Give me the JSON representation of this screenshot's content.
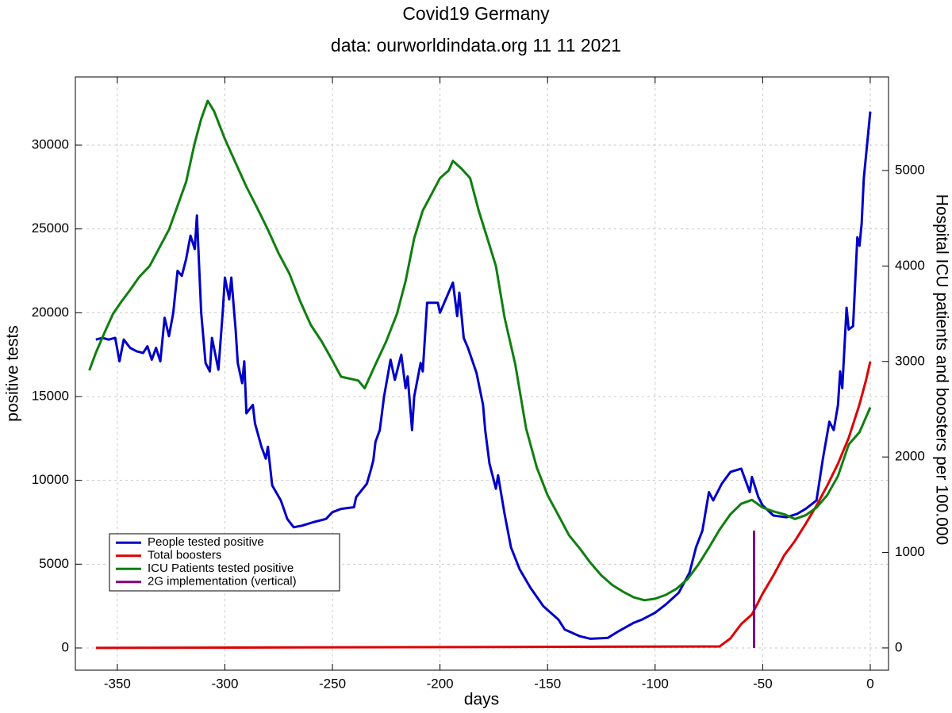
{
  "chart_data": {
    "type": "line",
    "title": "Covid19 Germany",
    "subtitle": "data: ourworldindata.org 11 11 2021",
    "xlabel": "days",
    "ylabel": "positive tests",
    "y2label": "Hospital ICU patients and boosters per 100.000",
    "xlim": [
      -369.5,
      8.5
    ],
    "xticks": [
      -350,
      -300,
      -250,
      -200,
      -150,
      -100,
      -50,
      0
    ],
    "ylim": [
      -1325,
      34070
    ],
    "yticks": [
      0,
      5000,
      10000,
      15000,
      20000,
      25000,
      30000
    ],
    "y2lim": [
      -233,
      5980
    ],
    "y2ticks": [
      0,
      1000,
      2000,
      3000,
      4000,
      5000
    ],
    "grid": true,
    "legend": "lower left",
    "series": [
      {
        "name": "People tested positive",
        "color": "#0000c8",
        "axis": "y",
        "x": [
          -360,
          -357,
          -354,
          -351,
          -349,
          -347,
          -344,
          -341,
          -338,
          -336,
          -334,
          -332,
          -330,
          -328,
          -326,
          -324,
          -322,
          -320,
          -318,
          -316,
          -314,
          -313,
          -311,
          -309,
          -307,
          -306,
          -303,
          -301,
          -300,
          -298,
          -297,
          -295,
          -294,
          -292,
          -291,
          -290,
          -287,
          -286,
          -283,
          -281,
          -280,
          -278,
          -274,
          -271,
          -268,
          -264,
          -259,
          -253,
          -250,
          -246,
          -240,
          -239,
          -234,
          -232,
          -231,
          -230,
          -228,
          -226,
          -223,
          -221,
          -219,
          -218,
          -216,
          -215,
          -213,
          -212,
          -209,
          -208,
          -206,
          -201,
          -200,
          -194,
          -192,
          -191,
          -189,
          -187,
          -183,
          -180,
          -179,
          -177,
          -174,
          -173,
          -170,
          -167,
          -163,
          -158,
          -152,
          -145,
          -142,
          -135,
          -130,
          -122,
          -117,
          -110,
          -106,
          -100,
          -95,
          -89,
          -84,
          -81,
          -78,
          -75,
          -73,
          -69,
          -65,
          -60,
          -56,
          -55,
          -52,
          -50,
          -45,
          -39,
          -34,
          -30,
          -25,
          -22,
          -19,
          -17,
          -15,
          -14,
          -13,
          -11,
          -10,
          -8,
          -6,
          -5,
          -4,
          -3,
          0
        ],
        "values": [
          18400,
          18500,
          18400,
          18500,
          17100,
          18400,
          17900,
          17700,
          17600,
          18000,
          17200,
          17900,
          17100,
          19700,
          18600,
          20000,
          22500,
          22200,
          23200,
          24600,
          23800,
          25800,
          20000,
          17000,
          16500,
          18500,
          16600,
          20000,
          22100,
          20800,
          22100,
          19000,
          17000,
          15800,
          17100,
          14000,
          14500,
          13400,
          12000,
          11300,
          12000,
          9700,
          8800,
          7700,
          7200,
          7300,
          7500,
          7700,
          8100,
          8300,
          8400,
          9000,
          9800,
          10700,
          11200,
          12300,
          13000,
          15000,
          17200,
          16000,
          17000,
          17500,
          15500,
          16200,
          13000,
          15000,
          17000,
          16500,
          20600,
          20600,
          20000,
          21800,
          19800,
          21200,
          18500,
          17900,
          16400,
          14500,
          13000,
          11000,
          9500,
          10300,
          8000,
          6000,
          4700,
          3600,
          2500,
          1700,
          1100,
          700,
          550,
          600,
          1000,
          1500,
          1700,
          2100,
          2600,
          3300,
          4500,
          6000,
          7000,
          9300,
          8800,
          9800,
          10500,
          10700,
          9300,
          10200,
          9000,
          8500,
          7900,
          7800,
          8000,
          8300,
          8800,
          11300,
          13500,
          13000,
          14500,
          16500,
          15500,
          20300,
          19000,
          19200,
          24500,
          24000,
          25300,
          28000,
          32000
        ]
      },
      {
        "name": "Total boosters",
        "color": "#dd0000",
        "axis": "y2",
        "x": [
          -360,
          -70,
          -65,
          -60,
          -55,
          -50,
          -45,
          -40,
          -35,
          -30,
          -25,
          -20,
          -15,
          -10,
          -5,
          -2,
          0
        ],
        "values": [
          0,
          15,
          100,
          250,
          350,
          570,
          760,
          970,
          1120,
          1300,
          1490,
          1700,
          1930,
          2200,
          2550,
          2800,
          3000
        ]
      },
      {
        "name": "ICU Patients tested positive",
        "color": "#0f7f0f",
        "axis": "y2",
        "x": [
          -363,
          -360,
          -356,
          -352,
          -348,
          -344,
          -340,
          -335,
          -330,
          -326,
          -322,
          -318,
          -314,
          -311,
          -308,
          -305,
          -300,
          -295,
          -290,
          -285,
          -280,
          -275,
          -270,
          -265,
          -260,
          -255,
          -250,
          -246,
          -242,
          -238,
          -235,
          -230,
          -225,
          -220,
          -216,
          -212,
          -208,
          -204,
          -200,
          -196,
          -194,
          -190,
          -186,
          -182,
          -178,
          -174,
          -170,
          -165,
          -160,
          -155,
          -150,
          -145,
          -140,
          -135,
          -130,
          -125,
          -120,
          -115,
          -110,
          -105,
          -100,
          -95,
          -90,
          -85,
          -80,
          -75,
          -70,
          -65,
          -60,
          -55,
          -50,
          -45,
          -40,
          -35,
          -30,
          -25,
          -20,
          -15,
          -10,
          -5,
          0
        ],
        "values": [
          2907,
          3090,
          3300,
          3500,
          3630,
          3750,
          3880,
          4000,
          4210,
          4380,
          4630,
          4880,
          5290,
          5540,
          5730,
          5620,
          5330,
          5080,
          4830,
          4610,
          4380,
          4130,
          3920,
          3630,
          3380,
          3210,
          3010,
          2840,
          2820,
          2800,
          2720,
          2970,
          3210,
          3500,
          3840,
          4290,
          4580,
          4750,
          4920,
          5000,
          5100,
          5020,
          4920,
          4580,
          4290,
          4000,
          3460,
          2970,
          2300,
          1890,
          1600,
          1390,
          1180,
          1040,
          890,
          760,
          660,
          590,
          530,
          500,
          515,
          556,
          620,
          720,
          870,
          1050,
          1240,
          1400,
          1510,
          1550,
          1470,
          1430,
          1400,
          1350,
          1390,
          1470,
          1600,
          1800,
          2130,
          2260,
          2520
        ]
      },
      {
        "name": "2G implementation (vertical)",
        "color": "#800080",
        "axis": "y",
        "x": [
          -54,
          -54
        ],
        "values": [
          0,
          7000
        ]
      }
    ]
  }
}
